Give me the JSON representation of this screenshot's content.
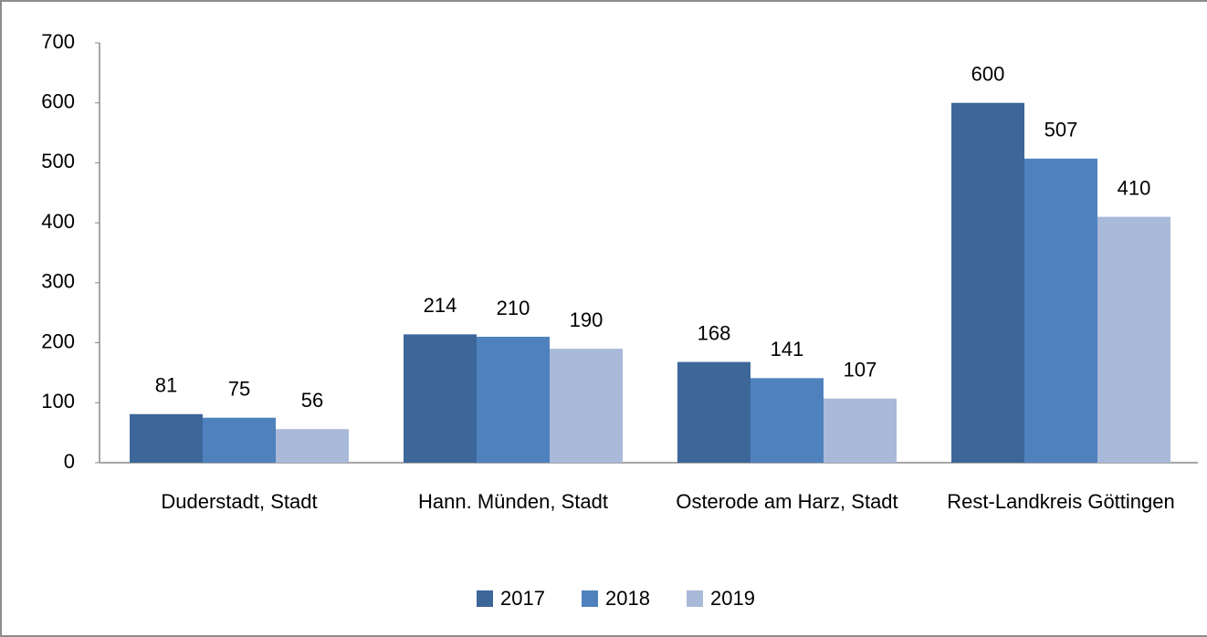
{
  "chart_data": {
    "type": "bar",
    "categories": [
      "Duderstadt, Stadt",
      "Hann. Münden, Stadt",
      "Osterode am Harz, Stadt",
      "Rest-Landkreis Göttingen"
    ],
    "series": [
      {
        "name": "2017",
        "color": "#3d6699",
        "values": [
          81,
          214,
          168,
          600
        ]
      },
      {
        "name": "2018",
        "color": "#4f81bd",
        "values": [
          75,
          210,
          141,
          507
        ]
      },
      {
        "name": "2019",
        "color": "#a9b9d9",
        "values": [
          56,
          190,
          107,
          410
        ]
      }
    ],
    "ylim": [
      0,
      700
    ],
    "yticks": [
      0,
      100,
      200,
      300,
      400,
      500,
      600,
      700
    ],
    "grid": false,
    "legend": "bottom"
  }
}
